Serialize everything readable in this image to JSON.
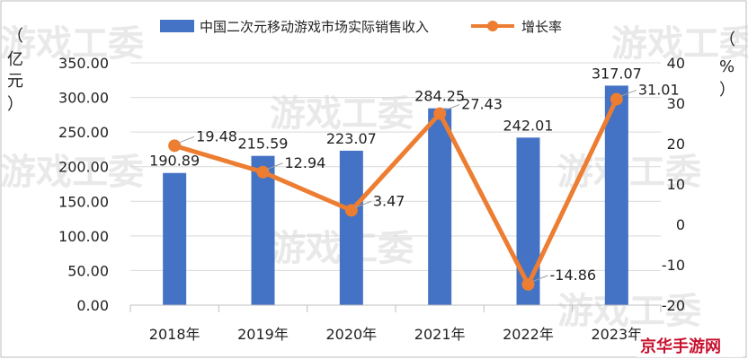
{
  "legend": {
    "bar_label": "中国二次元移动游戏市场实际销售收入",
    "line_label": "增长率"
  },
  "left_unit": [
    "（",
    "亿",
    "元",
    "）"
  ],
  "right_unit": [
    "（",
    "%",
    "）"
  ],
  "watermarks": [
    "游戏工委",
    "游戏工委",
    "游戏工委",
    "游戏工委",
    "游戏工委",
    "游戏工委",
    "游戏工委"
  ],
  "brand": "京华手游网",
  "colors": {
    "bar": "#4472C4",
    "line": "#ED7D31",
    "grid": "#d9d9d9"
  },
  "chart_data": {
    "type": "bar",
    "categories": [
      "2018年",
      "2019年",
      "2020年",
      "2021年",
      "2022年",
      "2023年"
    ],
    "series": [
      {
        "name": "中国二次元移动游戏市场实际销售收入",
        "type": "bar",
        "axis": "left",
        "values": [
          190.89,
          215.59,
          223.07,
          284.25,
          242.01,
          317.07
        ],
        "labels": [
          "190.89",
          "215.59",
          "223.07",
          "284.25",
          "242.01",
          "317.07"
        ]
      },
      {
        "name": "增长率",
        "type": "line",
        "axis": "right",
        "values": [
          19.48,
          12.94,
          3.47,
          27.43,
          -14.86,
          31.01
        ],
        "labels": [
          "19.48",
          "12.94",
          "3.47",
          "27.43",
          "-14.86",
          "31.01"
        ]
      }
    ],
    "y_left": {
      "min": 0,
      "max": 350,
      "step": 50,
      "tick_labels": [
        "0.00",
        "50.00",
        "100.00",
        "150.00",
        "200.00",
        "250.00",
        "300.00",
        "350.00"
      ]
    },
    "y_right": {
      "min": -20,
      "max": 40,
      "step": 10,
      "tick_labels": [
        "-20",
        "-10",
        "0",
        "10",
        "20",
        "30",
        "40"
      ]
    },
    "grid": true,
    "legend_position": "top"
  }
}
